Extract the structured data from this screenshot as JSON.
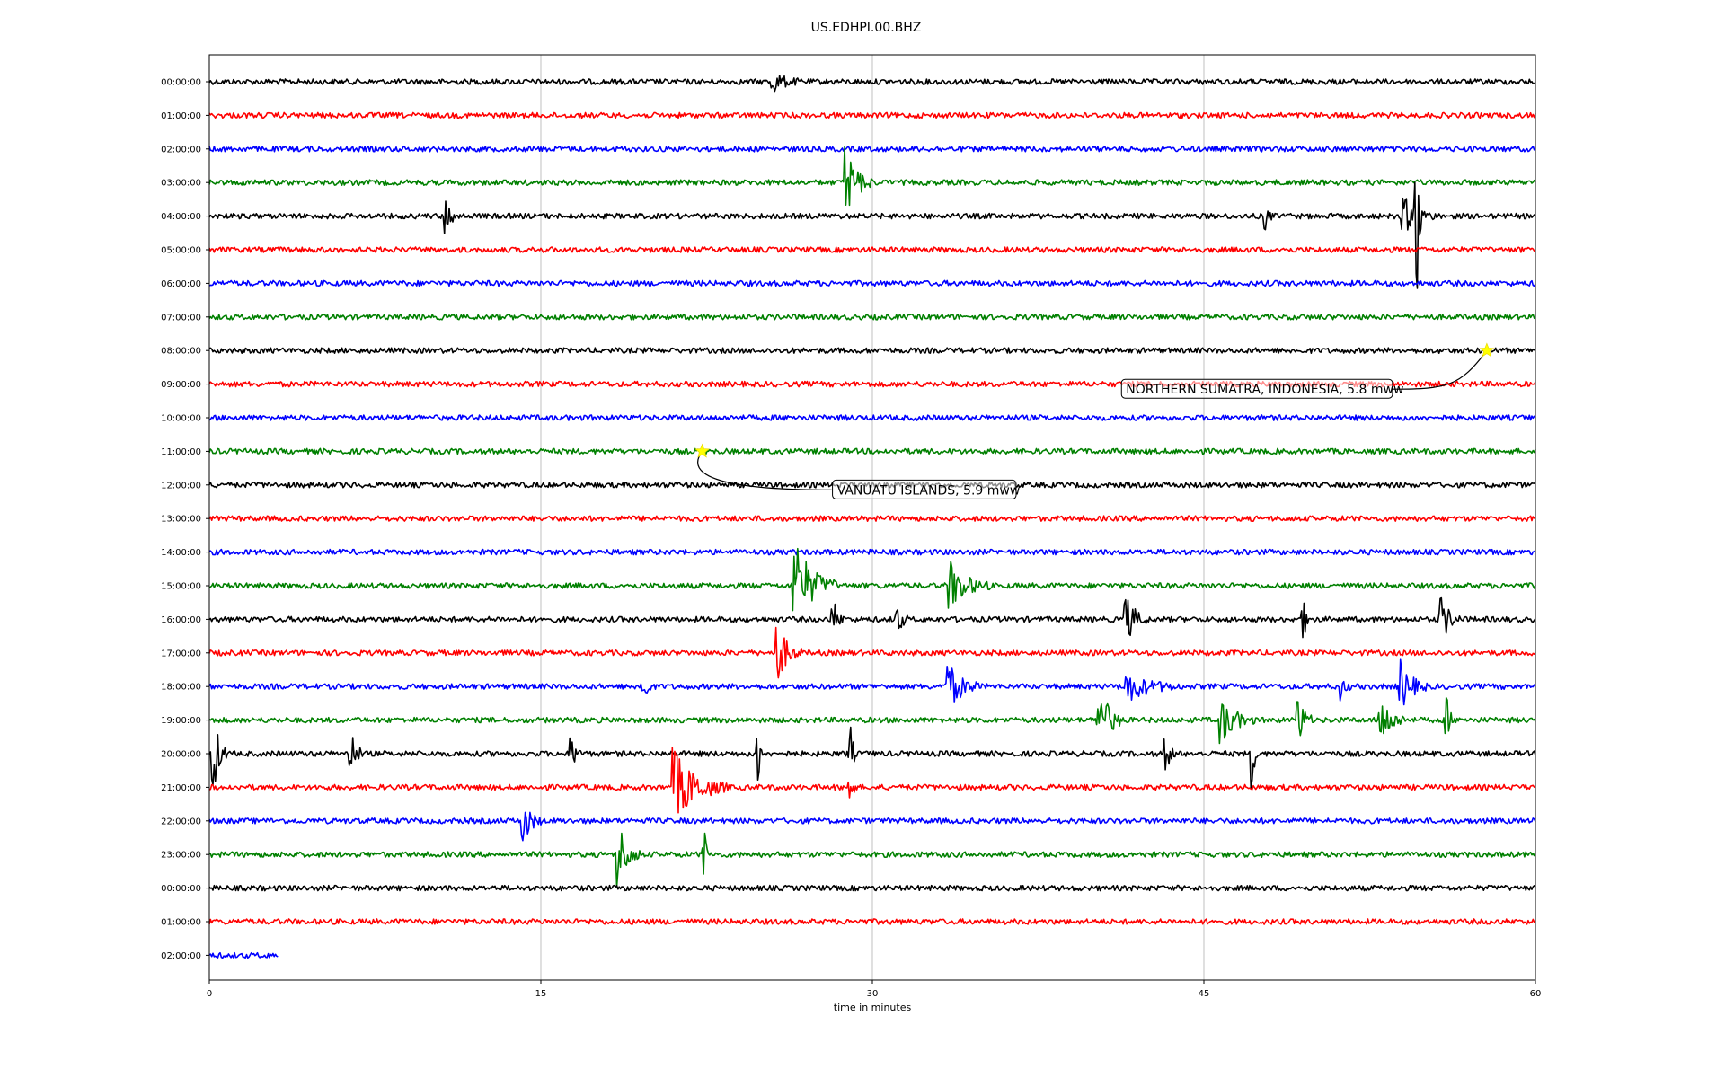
{
  "chart_data": {
    "type": "line",
    "title": "US.EDHPI.00.BHZ",
    "xlabel": "time in minutes",
    "ylabel": "",
    "xlim": [
      0,
      60
    ],
    "x_ticks": [
      "0",
      "15",
      "30",
      "45",
      "60"
    ],
    "grid": "vertical",
    "colors": [
      "#000000",
      "#ff0000",
      "#0000ff",
      "#008000"
    ],
    "rows": [
      {
        "label": "00:00:00",
        "color": "#000000",
        "bursts": [
          [
            25.5,
            1.3,
            0.8
          ]
        ]
      },
      {
        "label": "01:00:00",
        "color": "#ff0000",
        "bursts": []
      },
      {
        "label": "02:00:00",
        "color": "#0000ff",
        "bursts": []
      },
      {
        "label": "03:00:00",
        "color": "#008000",
        "bursts": [
          [
            28.8,
            1.2,
            3.0
          ]
        ]
      },
      {
        "label": "04:00:00",
        "color": "#000000",
        "bursts": [
          [
            10.7,
            0.6,
            1.4
          ],
          [
            54.6,
            0.3,
            9.0
          ],
          [
            54.0,
            1.5,
            1.6
          ],
          [
            47.8,
            0.3,
            1.0
          ]
        ]
      },
      {
        "label": "05:00:00",
        "color": "#ff0000",
        "bursts": []
      },
      {
        "label": "06:00:00",
        "color": "#0000ff",
        "bursts": []
      },
      {
        "label": "07:00:00",
        "color": "#008000",
        "bursts": []
      },
      {
        "label": "08:00:00",
        "color": "#000000",
        "bursts": []
      },
      {
        "label": "09:00:00",
        "color": "#ff0000",
        "bursts": []
      },
      {
        "label": "10:00:00",
        "color": "#0000ff",
        "bursts": []
      },
      {
        "label": "11:00:00",
        "color": "#008000",
        "bursts": []
      },
      {
        "label": "12:00:00",
        "color": "#000000",
        "bursts": []
      },
      {
        "label": "13:00:00",
        "color": "#ff0000",
        "bursts": []
      },
      {
        "label": "14:00:00",
        "color": "#0000ff",
        "bursts": []
      },
      {
        "label": "15:00:00",
        "color": "#008000",
        "bursts": [
          [
            26.4,
            2.0,
            4.0
          ],
          [
            33.5,
            1.8,
            2.0
          ]
        ]
      },
      {
        "label": "16:00:00",
        "color": "#000000",
        "bursts": [
          [
            28.2,
            0.5,
            1.8
          ],
          [
            31.1,
            0.5,
            1.3
          ],
          [
            41.5,
            1.0,
            1.8
          ],
          [
            49.5,
            0.5,
            1.3
          ],
          [
            55.7,
            0.9,
            2.0
          ]
        ]
      },
      {
        "label": "17:00:00",
        "color": "#ff0000",
        "bursts": [
          [
            25.7,
            1.1,
            2.4
          ]
        ]
      },
      {
        "label": "18:00:00",
        "color": "#0000ff",
        "bursts": [
          [
            19.6,
            0.4,
            1.8
          ],
          [
            33.4,
            1.5,
            2.0
          ],
          [
            41.5,
            2.5,
            1.2
          ],
          [
            53.9,
            1.2,
            2.0
          ],
          [
            51.2,
            0.4,
            1.0
          ]
        ]
      },
      {
        "label": "19:00:00",
        "color": "#008000",
        "bursts": [
          [
            40.2,
            1.2,
            3.0
          ],
          [
            45.8,
            1.5,
            1.8
          ],
          [
            49.3,
            0.6,
            2.0
          ],
          [
            53.0,
            1.2,
            1.8
          ],
          [
            56.0,
            0.3,
            1.8
          ]
        ]
      },
      {
        "label": "20:00:00",
        "color": "#000000",
        "bursts": [
          [
            0.2,
            0.6,
            3.0
          ],
          [
            6.4,
            0.6,
            1.8
          ],
          [
            24.8,
            0.2,
            3.0
          ],
          [
            29.0,
            0.2,
            2.6
          ],
          [
            47.2,
            0.2,
            2.6
          ],
          [
            16.4,
            0.5,
            1.2
          ],
          [
            43.3,
            0.5,
            1.2
          ]
        ]
      },
      {
        "label": "21:00:00",
        "color": "#ff0000",
        "bursts": [
          [
            21.0,
            2.5,
            3.0
          ],
          [
            29.0,
            0.2,
            1.6
          ]
        ]
      },
      {
        "label": "22:00:00",
        "color": "#0000ff",
        "bursts": [
          [
            14.2,
            0.8,
            1.8
          ]
        ]
      },
      {
        "label": "23:00:00",
        "color": "#008000",
        "bursts": [
          [
            18.5,
            1.0,
            2.8
          ],
          [
            22.4,
            0.2,
            2.0
          ]
        ]
      },
      {
        "label": "00:00:00",
        "color": "#000000",
        "bursts": []
      },
      {
        "label": "01:00:00",
        "color": "#ff0000",
        "bursts": []
      },
      {
        "label": "02:00:00",
        "color": "#0000ff",
        "bursts": [],
        "end_minute": 3.1
      }
    ],
    "events": [
      {
        "label": "NORTHERN SUMATRA, INDONESIA, 5.8 mww",
        "row": 8,
        "minute": 57.8
      },
      {
        "label": "VANUATU ISLANDS, 5.9 mww",
        "row": 11,
        "minute": 22.3
      }
    ]
  }
}
